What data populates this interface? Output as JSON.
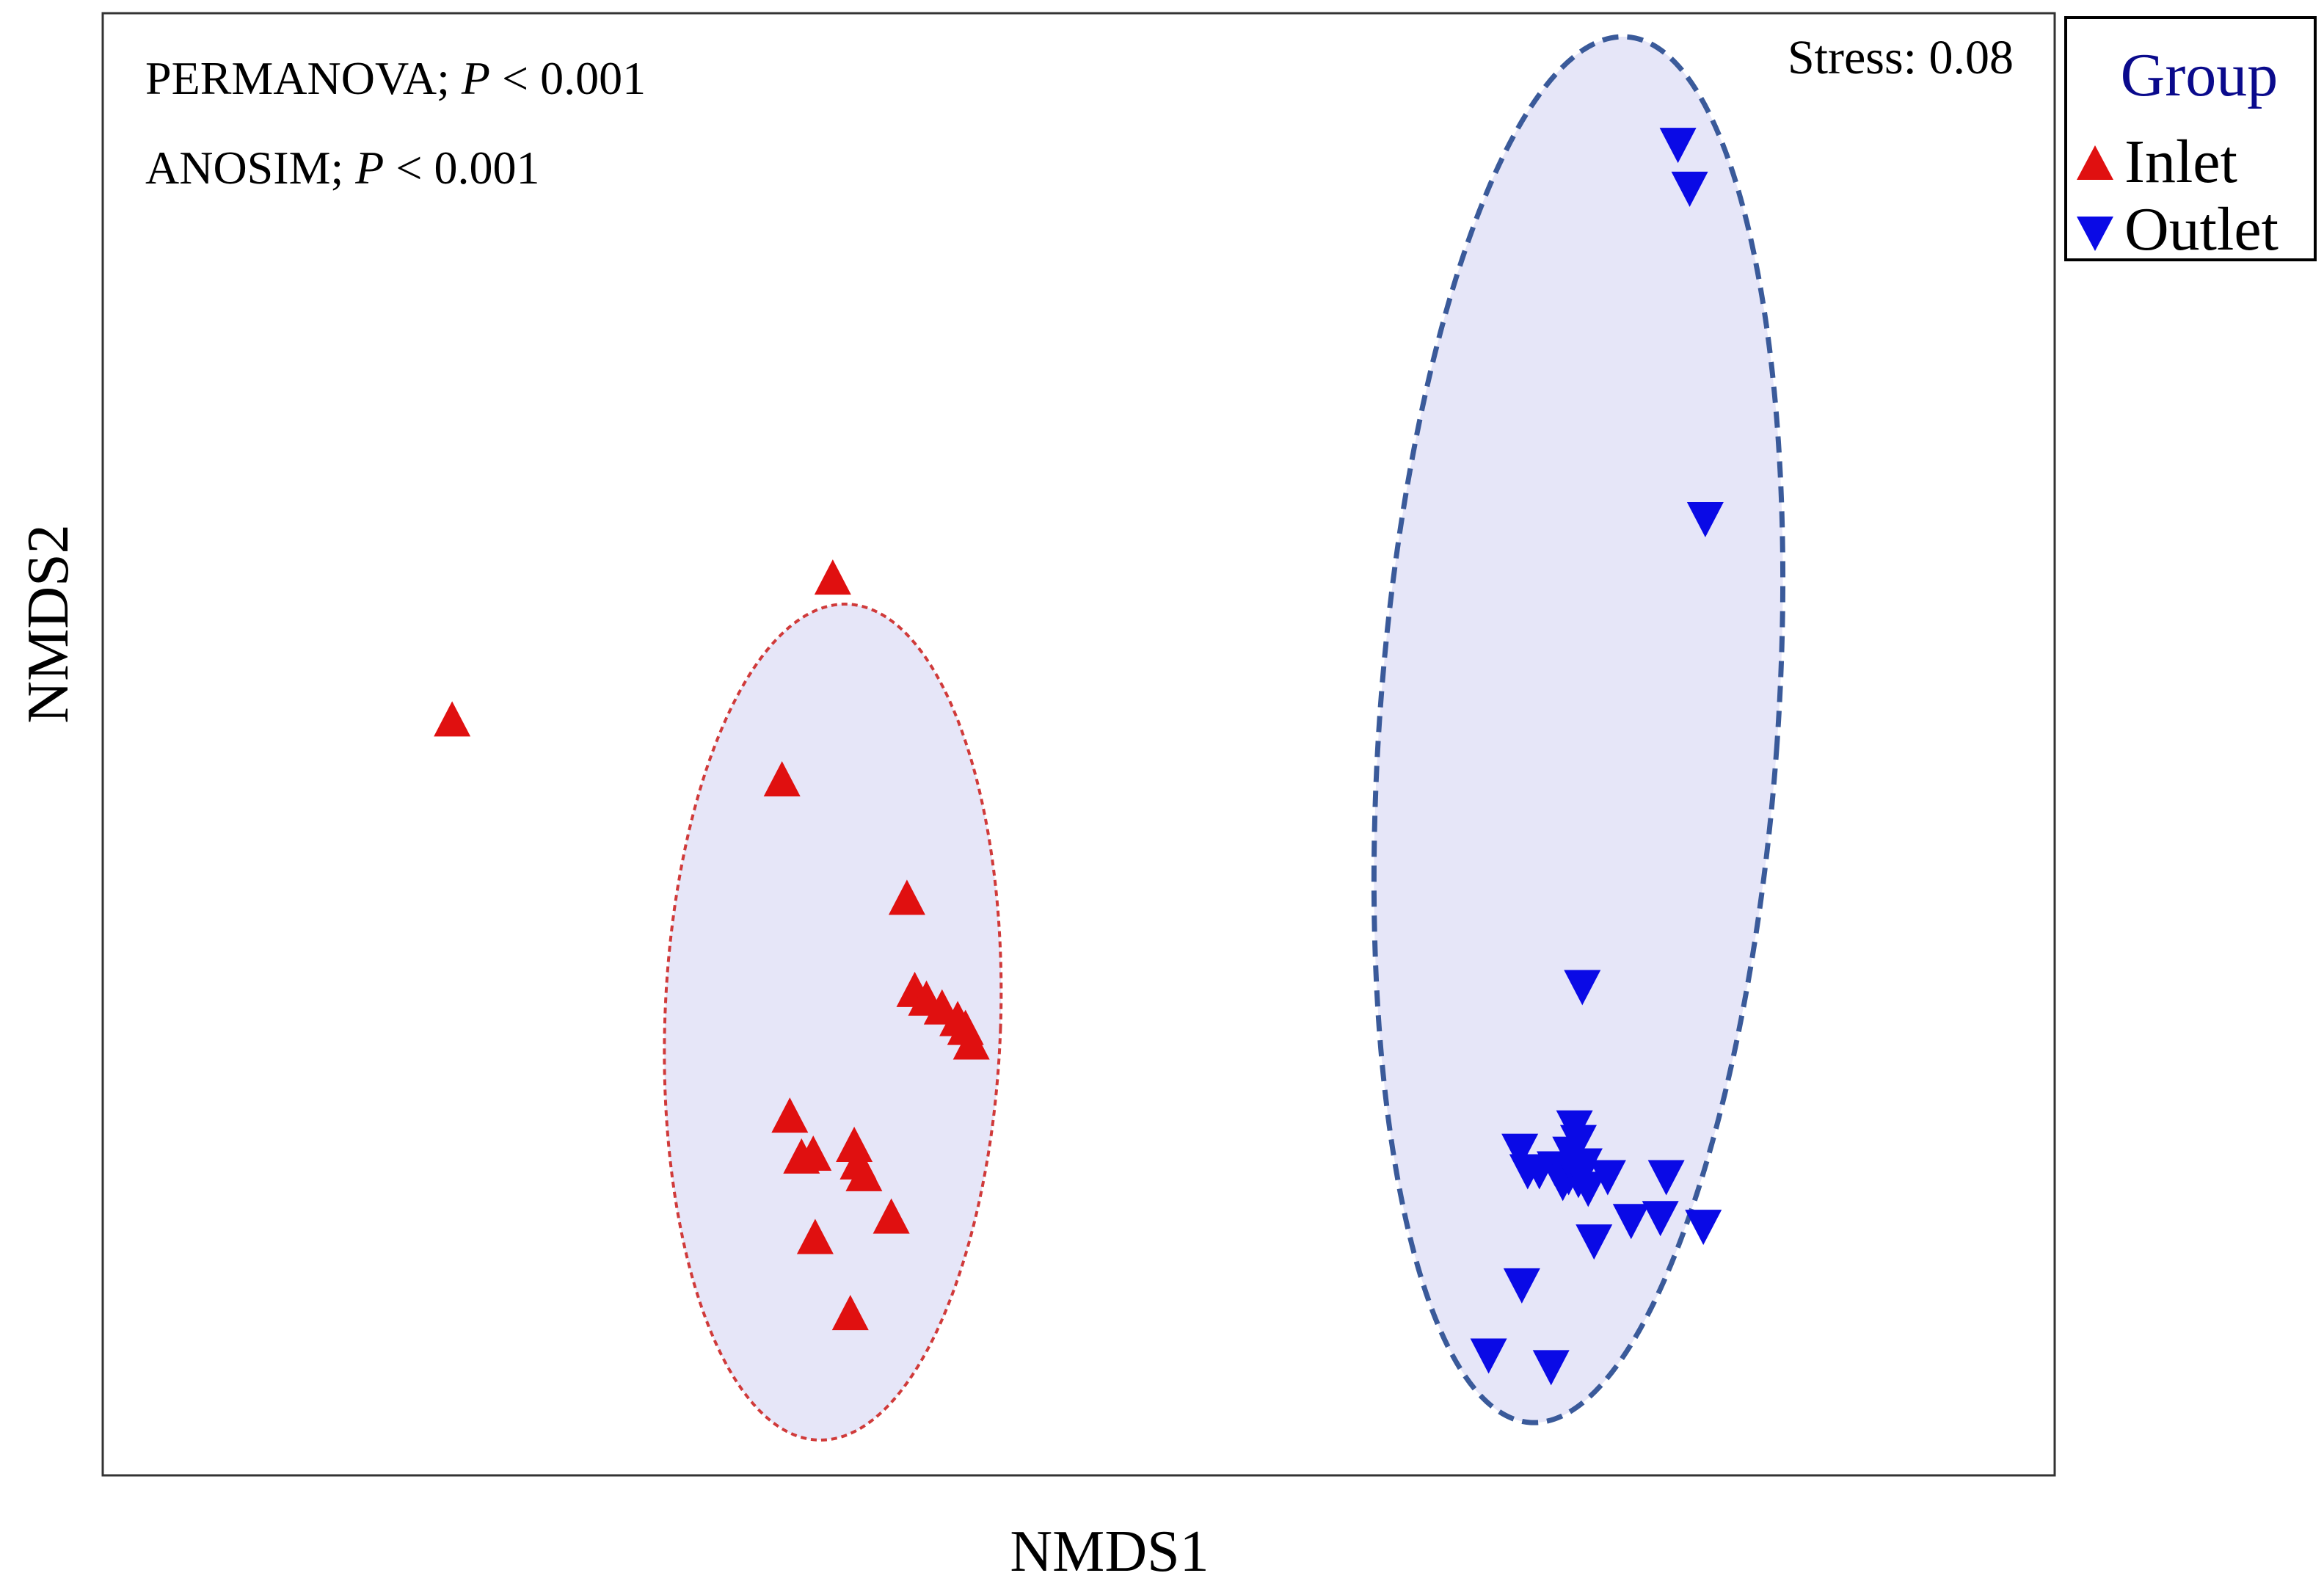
{
  "chart_data": {
    "type": "scatter",
    "title": "",
    "xlabel": "NMDS1",
    "ylabel": "NMDS2",
    "xlim": [
      0,
      100
    ],
    "ylim": [
      0,
      100
    ],
    "grid": false,
    "annotations": {
      "permanova_label": "PERMANOVA; ",
      "permanova_p": "P",
      "permanova_value": " < 0.001",
      "anosim_label": "ANOSIM; ",
      "anosim_p": "P",
      "anosim_value": " < 0.001",
      "stress": "Stress: 0.08"
    },
    "legend": {
      "title": "Group",
      "position": "outside-top-right",
      "entries": [
        "Inlet",
        "Outlet"
      ]
    },
    "colors": {
      "inlet": "#e01010",
      "outlet": "#0a0ae6",
      "ellipse_fill": "#e6e6f8",
      "inlet_ellipse_stroke": "#d03a3a",
      "outlet_ellipse_stroke": "#3a5a9a",
      "legend_title": "#0a0a8c"
    },
    "series": [
      {
        "name": "Inlet",
        "marker": "triangle-up",
        "points": [
          {
            "x": 17.9,
            "y": 51.5
          },
          {
            "x": 37.4,
            "y": 61.2
          },
          {
            "x": 34.8,
            "y": 47.4
          },
          {
            "x": 41.2,
            "y": 39.3
          },
          {
            "x": 41.6,
            "y": 33.0
          },
          {
            "x": 42.2,
            "y": 32.4
          },
          {
            "x": 43.0,
            "y": 31.8
          },
          {
            "x": 43.8,
            "y": 31.0
          },
          {
            "x": 44.2,
            "y": 30.4
          },
          {
            "x": 44.5,
            "y": 29.4
          },
          {
            "x": 35.2,
            "y": 24.4
          },
          {
            "x": 35.8,
            "y": 21.6
          },
          {
            "x": 36.4,
            "y": 21.8
          },
          {
            "x": 38.5,
            "y": 22.4
          },
          {
            "x": 38.7,
            "y": 21.2
          },
          {
            "x": 39.0,
            "y": 20.4
          },
          {
            "x": 40.4,
            "y": 17.5
          },
          {
            "x": 36.5,
            "y": 16.1
          },
          {
            "x": 38.3,
            "y": 10.9
          }
        ],
        "ellipse": {
          "cx": 37.4,
          "cy": 31.0,
          "rx": 8.6,
          "ry": 28.6,
          "angle_deg": -2
        }
      },
      {
        "name": "Outlet",
        "marker": "triangle-down",
        "points": [
          {
            "x": 80.7,
            "y": 91.2
          },
          {
            "x": 81.3,
            "y": 88.2
          },
          {
            "x": 82.1,
            "y": 65.6
          },
          {
            "x": 75.8,
            "y": 33.6
          },
          {
            "x": 75.4,
            "y": 24.0
          },
          {
            "x": 75.6,
            "y": 23.0
          },
          {
            "x": 75.2,
            "y": 22.2
          },
          {
            "x": 75.9,
            "y": 21.4
          },
          {
            "x": 74.4,
            "y": 21.2
          },
          {
            "x": 75.1,
            "y": 20.6
          },
          {
            "x": 74.8,
            "y": 20.2
          },
          {
            "x": 73.6,
            "y": 21.0
          },
          {
            "x": 73.0,
            "y": 21.0
          },
          {
            "x": 75.6,
            "y": 20.4
          },
          {
            "x": 76.1,
            "y": 19.8
          },
          {
            "x": 77.1,
            "y": 20.6
          },
          {
            "x": 80.1,
            "y": 20.6
          },
          {
            "x": 79.8,
            "y": 17.8
          },
          {
            "x": 78.3,
            "y": 17.6
          },
          {
            "x": 82.0,
            "y": 17.2
          },
          {
            "x": 76.4,
            "y": 16.2
          },
          {
            "x": 72.6,
            "y": 22.4
          },
          {
            "x": 72.7,
            "y": 13.2
          },
          {
            "x": 71.0,
            "y": 8.4
          },
          {
            "x": 74.2,
            "y": 7.6
          }
        ],
        "ellipse": {
          "cx": 75.6,
          "cy": 51.0,
          "rx": 10.2,
          "ry": 47.5,
          "angle_deg": -4
        }
      }
    ]
  }
}
